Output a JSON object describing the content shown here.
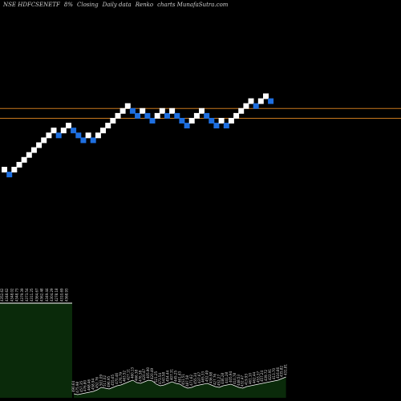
{
  "header": {
    "symbol": "NSE HDFCSENETF",
    "change": "8%",
    "mode": "Closing",
    "period": "Daily data",
    "chart_kind": "Renko",
    "site": "charts MunafaSutra.com"
  },
  "colors": {
    "background": "#000000",
    "up_brick": "#ffffff",
    "down_brick": "#1e6fe0",
    "level_line": "#c8791e",
    "volume_fill": "#0a2a0a",
    "volume_line": "#ffffff",
    "label_text": "#dddddd"
  },
  "chart_data": {
    "type": "renko",
    "brick_levels": [
      13,
      12,
      13,
      14,
      15,
      16,
      17,
      18,
      19,
      20,
      21,
      20,
      21,
      22,
      21,
      20,
      19,
      20,
      19,
      20,
      21,
      22,
      23,
      24,
      25,
      26,
      25,
      24,
      25,
      24,
      23,
      24,
      25,
      24,
      25,
      24,
      23,
      22,
      23,
      24,
      25,
      24,
      23,
      22,
      23,
      22,
      23,
      24,
      25,
      26,
      27,
      26,
      27,
      28,
      27
    ],
    "brick_direction": [
      "up",
      "down",
      "up",
      "up",
      "up",
      "up",
      "up",
      "up",
      "up",
      "up",
      "up",
      "down",
      "up",
      "up",
      "down",
      "down",
      "down",
      "up",
      "down",
      "up",
      "up",
      "up",
      "up",
      "up",
      "up",
      "up",
      "down",
      "down",
      "up",
      "down",
      "down",
      "up",
      "up",
      "down",
      "up",
      "down",
      "down",
      "down",
      "up",
      "up",
      "up",
      "down",
      "down",
      "down",
      "up",
      "down",
      "up",
      "up",
      "up",
      "up",
      "up",
      "down",
      "up",
      "up",
      "down"
    ],
    "horizontal_levels": [
      25.5,
      23.5
    ],
    "volume": {
      "left_block_labels": [
        "4352.62",
        "4348.62",
        "4348.02",
        "4348.73",
        "4379.39",
        "4373.54",
        "4311.25",
        "4364.67",
        "4362.48",
        "4349.44",
        "4304.29",
        "4278.18",
        "4310.69",
        "4368.93"
      ],
      "bar_labels": [
        "490.64",
        "475.98",
        "457.35",
        "476.80",
        "468.46",
        "458.94",
        "452.76",
        "501.09",
        "511.02",
        "496.95",
        "455.65",
        "470.46",
        "476.79",
        "463.52",
        "427.11",
        "460.13",
        "466.38",
        "476.38",
        "420.47",
        "405.90",
        "420.49",
        "521.25",
        "473.54",
        "543.58",
        "454.44",
        "407.31",
        "445.25",
        "461.43",
        "451.51",
        "487.58",
        "471.62",
        "455.34",
        "437.67",
        "465.33",
        "452.49",
        "436.98",
        "427.76",
        "452.27",
        "446.28",
        "441.28",
        "405.94",
        "410.78",
        "448.53",
        "432.47",
        "419.93",
        "461.10",
        "462.44",
        "453.37",
        "457.24",
        "439.72",
        "422.91",
        "413.70",
        "416.66",
        "435.82",
        "431.81"
      ],
      "bar_values": [
        5,
        4,
        5,
        6,
        7,
        8,
        10,
        13,
        12,
        11,
        13,
        15,
        16,
        18,
        20,
        22,
        19,
        18,
        20,
        22,
        21,
        17,
        15,
        16,
        18,
        20,
        18,
        17,
        14,
        12,
        13,
        15,
        16,
        17,
        18,
        16,
        14,
        13,
        15,
        16,
        17,
        15,
        13,
        12,
        14,
        15,
        16,
        17,
        18,
        19,
        20,
        21,
        22,
        24,
        26
      ]
    }
  }
}
